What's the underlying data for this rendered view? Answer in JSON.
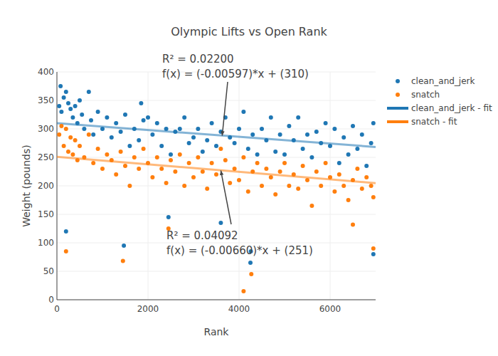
{
  "chart_data": {
    "type": "scatter",
    "title": "Olympic Lifts vs Open Rank",
    "x_label": "Rank",
    "y_label": "Weight (pounds)",
    "xlim": [
      0,
      7000
    ],
    "xticks": [
      0,
      2000,
      4000,
      6000
    ],
    "ylim": [
      0,
      400
    ],
    "yticks": [
      0,
      50,
      100,
      150,
      200,
      250,
      300,
      350,
      400
    ],
    "grid": true,
    "legend": "right",
    "series": [
      {
        "name": "clean_and_jerk",
        "color": "#1f77b4",
        "type": "scatter",
        "marker": "circle",
        "x": [
          50,
          80,
          100,
          150,
          200,
          250,
          300,
          350,
          400,
          450,
          500,
          550,
          600,
          700,
          750,
          800,
          900,
          1000,
          1100,
          1200,
          1300,
          1400,
          1500,
          1600,
          1700,
          1800,
          1850,
          1900,
          2000,
          2100,
          2200,
          2300,
          2400,
          2500,
          2600,
          2700,
          2800,
          2900,
          3000,
          3100,
          3200,
          3300,
          3400,
          3500,
          3600,
          3700,
          3800,
          3900,
          4000,
          4100,
          4200,
          4300,
          4400,
          4500,
          4600,
          4700,
          4800,
          4900,
          5000,
          5100,
          5200,
          5300,
          5400,
          5500,
          5600,
          5700,
          5800,
          5900,
          6000,
          6100,
          6200,
          6300,
          6400,
          6500,
          6600,
          6700,
          6800,
          6900,
          6950,
          200,
          1470,
          2450,
          3600,
          4250,
          4260,
          6950
        ],
        "values": [
          340,
          375,
          330,
          355,
          365,
          345,
          335,
          320,
          340,
          310,
          350,
          325,
          300,
          365,
          315,
          290,
          330,
          300,
          320,
          285,
          310,
          295,
          325,
          270,
          300,
          280,
          345,
          315,
          320,
          290,
          310,
          270,
          300,
          255,
          295,
          300,
          320,
          275,
          285,
          300,
          260,
          280,
          310,
          270,
          295,
          320,
          285,
          275,
          300,
          330,
          265,
          290,
          255,
          300,
          280,
          320,
          260,
          290,
          255,
          305,
          280,
          320,
          265,
          290,
          250,
          295,
          275,
          310,
          270,
          300,
          240,
          285,
          255,
          305,
          265,
          290,
          235,
          275,
          310,
          120,
          95,
          145,
          135,
          65,
          85,
          80
        ]
      },
      {
        "name": "snatch",
        "color": "#ff7f0e",
        "type": "scatter",
        "marker": "circle",
        "x": [
          50,
          100,
          150,
          200,
          250,
          300,
          350,
          400,
          450,
          500,
          600,
          700,
          800,
          900,
          1000,
          1100,
          1200,
          1300,
          1400,
          1500,
          1600,
          1700,
          1800,
          1900,
          2000,
          2100,
          2200,
          2300,
          2400,
          2500,
          2600,
          2700,
          2800,
          2900,
          3000,
          3100,
          3200,
          3300,
          3400,
          3500,
          3600,
          3700,
          3800,
          3900,
          4000,
          4100,
          4200,
          4300,
          4400,
          4500,
          4600,
          4700,
          4800,
          4900,
          5000,
          5100,
          5200,
          5300,
          5400,
          5500,
          5600,
          5700,
          5800,
          5900,
          6000,
          6100,
          6200,
          6300,
          6400,
          6500,
          6600,
          6700,
          6800,
          6900,
          6950,
          200,
          1450,
          2450,
          4100,
          4270,
          6500,
          6950
        ],
        "values": [
          290,
          305,
          270,
          300,
          260,
          285,
          255,
          280,
          245,
          270,
          250,
          290,
          240,
          265,
          230,
          255,
          245,
          220,
          260,
          235,
          200,
          250,
          230,
          265,
          240,
          215,
          250,
          230,
          205,
          245,
          225,
          255,
          200,
          240,
          215,
          250,
          225,
          195,
          240,
          220,
          265,
          245,
          205,
          230,
          210,
          250,
          190,
          225,
          240,
          200,
          230,
          215,
          185,
          225,
          240,
          200,
          220,
          195,
          235,
          210,
          165,
          225,
          200,
          240,
          215,
          190,
          220,
          200,
          175,
          210,
          230,
          195,
          215,
          200,
          180,
          85,
          68,
          125,
          15,
          45,
          132,
          90
        ]
      },
      {
        "name": "clean_and_jerk - fit",
        "color": "#1f77b4",
        "type": "line",
        "line_style": "solid",
        "x": [
          0,
          7000
        ],
        "values": [
          310,
          268.2
        ]
      },
      {
        "name": "snatch - fit",
        "color": "#ff7f0e",
        "type": "line",
        "line_style": "solid",
        "x": [
          0,
          7000
        ],
        "values": [
          251,
          204.8
        ]
      }
    ],
    "annotations": [
      {
        "lines": [
          "R² = 0.02200",
          "f(x) = (-0.00597)*x + (310)"
        ],
        "x": 3630,
        "y": 288
      },
      {
        "lines": [
          "R² = 0.04092",
          "f(x) = (-0.00660)*x + (251)"
        ],
        "x": 3600,
        "y": 227
      }
    ]
  }
}
